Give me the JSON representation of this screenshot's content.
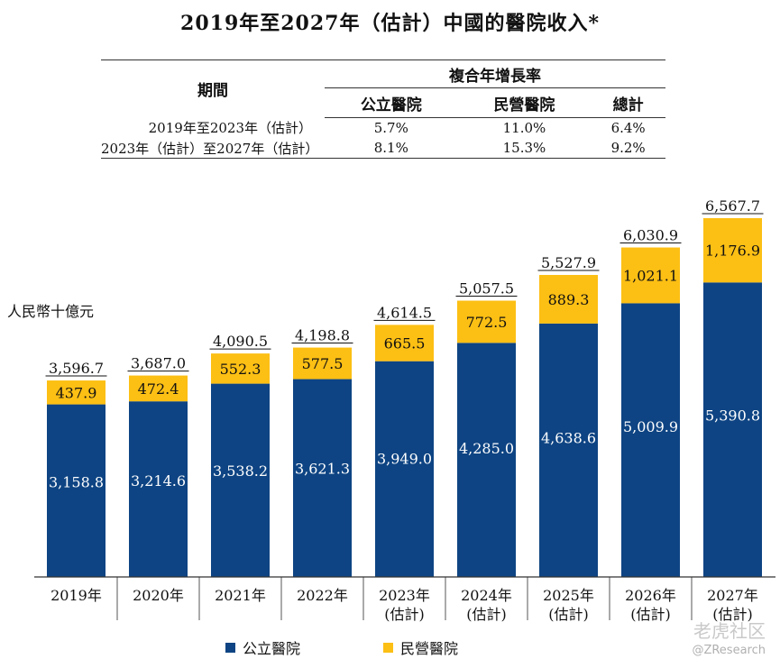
{
  "title": "2019年至2027年（估計）中國的醫院收入*",
  "cagr_table": {
    "period_header": "期間",
    "group_header": "複合年增長率",
    "columns": [
      "公立醫院",
      "民營醫院",
      "總計"
    ],
    "rows": [
      {
        "period": "2019年至2023年（估計）",
        "values": [
          "5.7%",
          "11.0%",
          "6.4%"
        ]
      },
      {
        "period": "2023年（估計）至2027年（估計）",
        "values": [
          "8.1%",
          "15.3%",
          "9.2%"
        ]
      }
    ]
  },
  "colors": {
    "public": "#0E4483",
    "private": "#FCBF14"
  },
  "watermark": {
    "main": "老虎社区",
    "sub": "@ZResearch"
  },
  "chart_data": {
    "type": "bar",
    "stacked": true,
    "ylabel": "人民幣十億元",
    "categories": [
      [
        "2019年"
      ],
      [
        "2020年"
      ],
      [
        "2021年"
      ],
      [
        "2022年"
      ],
      [
        "2023年",
        "(估計)"
      ],
      [
        "2024年",
        "(估計)"
      ],
      [
        "2025年",
        "(估計)"
      ],
      [
        "2026年",
        "(估計)"
      ],
      [
        "2027年",
        "(估計)"
      ]
    ],
    "series": [
      {
        "name": "公立醫院",
        "values": [
          3158.8,
          3214.6,
          3538.2,
          3621.3,
          3949.0,
          4285.0,
          4638.6,
          5009.9,
          5390.8
        ],
        "labels": [
          "3,158.8",
          "3,214.6",
          "3,538.2",
          "3,621.3",
          "3,949.0",
          "4,285.0",
          "4,638.6",
          "5,009.9",
          "5,390.8"
        ]
      },
      {
        "name": "民營醫院",
        "values": [
          437.9,
          472.4,
          552.3,
          577.5,
          665.5,
          772.5,
          889.3,
          1021.1,
          1176.9
        ],
        "labels": [
          "437.9",
          "472.4",
          "552.3",
          "577.5",
          "665.5",
          "772.5",
          "889.3",
          "1,021.1",
          "1,176.9"
        ]
      }
    ],
    "totals": [
      3596.7,
      3687.0,
      4090.5,
      4198.8,
      4614.5,
      5057.5,
      5527.9,
      6030.9,
      6567.7
    ],
    "total_labels": [
      "3,596.7",
      "3,687.0",
      "4,090.5",
      "4,198.8",
      "4,614.5",
      "5,057.5",
      "5,527.9",
      "6,030.9",
      "6,567.7"
    ],
    "ylim": [
      0,
      6567.7
    ],
    "grid": false,
    "legend": "bottom"
  }
}
